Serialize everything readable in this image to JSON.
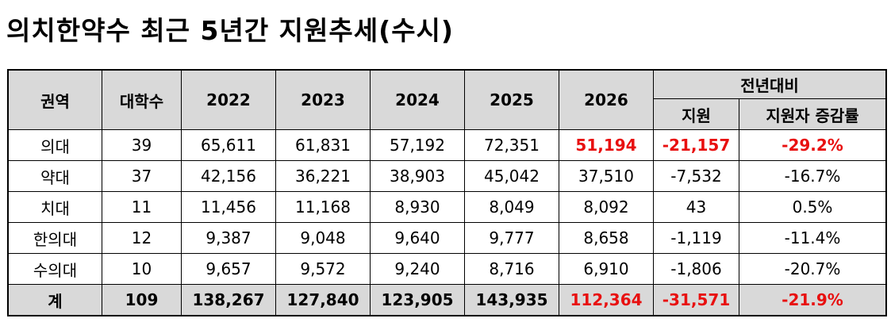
{
  "title": "의치한약수 최근 5년간 지원추세(수시)",
  "table": {
    "headers": {
      "region": "권역",
      "universities": "대학수",
      "y2022": "2022",
      "y2023": "2023",
      "y2024": "2024",
      "y2025": "2025",
      "y2026": "2026",
      "yoy": "전년대비",
      "yoy_applicants": "지원",
      "yoy_rate": "지원자 증감률"
    },
    "rows": [
      {
        "region": "의대",
        "univ": "39",
        "y2022": "65,611",
        "y2023": "61,831",
        "y2024": "57,192",
        "y2025": "72,351",
        "y2026": "51,194",
        "diff": "-21,157",
        "rate": "-29.2%"
      },
      {
        "region": "약대",
        "univ": "37",
        "y2022": "42,156",
        "y2023": "36,221",
        "y2024": "38,903",
        "y2025": "45,042",
        "y2026": "37,510",
        "diff": "-7,532",
        "rate": "-16.7%"
      },
      {
        "region": "치대",
        "univ": "11",
        "y2022": "11,456",
        "y2023": "11,168",
        "y2024": "8,930",
        "y2025": "8,049",
        "y2026": "8,092",
        "diff": "43",
        "rate": "0.5%"
      },
      {
        "region": "한의대",
        "univ": "12",
        "y2022": "9,387",
        "y2023": "9,048",
        "y2024": "9,640",
        "y2025": "9,777",
        "y2026": "8,658",
        "diff": "-1,119",
        "rate": "-11.4%"
      },
      {
        "region": "수의대",
        "univ": "10",
        "y2022": "9,657",
        "y2023": "9,572",
        "y2024": "9,240",
        "y2025": "8,716",
        "y2026": "6,910",
        "diff": "-1,806",
        "rate": "-20.7%"
      }
    ],
    "total": {
      "region": "계",
      "univ": "109",
      "y2022": "138,267",
      "y2023": "127,840",
      "y2024": "123,905",
      "y2025": "143,935",
      "y2026": "112,364",
      "diff": "-31,571",
      "rate": "-21.9%"
    },
    "colors": {
      "header_bg": "#d9d9d9",
      "highlight": "#e81010"
    }
  }
}
